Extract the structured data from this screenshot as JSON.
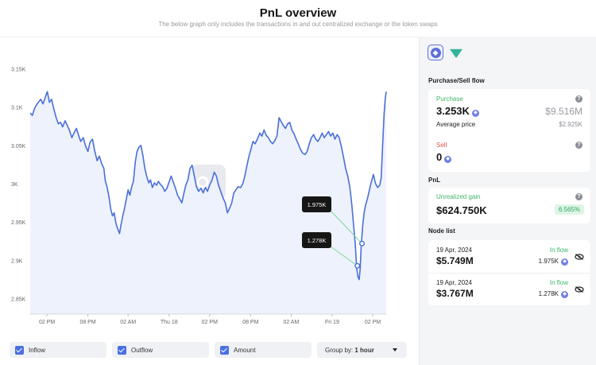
{
  "header": {
    "title": "PnL overview",
    "subtitle": "The below graph only includes the transactions in and out centralized exchange or the token swaps"
  },
  "chart_data": {
    "type": "line",
    "y_ticks": [
      "3.15K",
      "3.1K",
      "3.05K",
      "3K",
      "2.95K",
      "2.9K",
      "2.85K"
    ],
    "y_tick_values": [
      3150,
      3100,
      3050,
      3000,
      2950,
      2900,
      2850
    ],
    "ylim": [
      2830,
      3170
    ],
    "x_ticks": [
      "02 PM",
      "08 PM",
      "02 AM",
      "Thu 18",
      "02 PM",
      "08 PM",
      "02 AM",
      "Fri 19",
      "02 PM"
    ],
    "xlim": [
      0,
      100
    ],
    "x_tick_values": [
      4.7,
      16.2,
      27.5,
      39.0,
      50.4,
      61.9,
      73.3,
      84.8,
      96.2
    ],
    "values": [
      [
        0,
        3092
      ],
      [
        0.6,
        3089
      ],
      [
        1.2,
        3098
      ],
      [
        1.8,
        3103
      ],
      [
        2.4,
        3107
      ],
      [
        3.0,
        3110
      ],
      [
        3.6,
        3104
      ],
      [
        4.2,
        3112
      ],
      [
        4.8,
        3120
      ],
      [
        5.4,
        3106
      ],
      [
        6.0,
        3110
      ],
      [
        6.6,
        3098
      ],
      [
        7.3,
        3086
      ],
      [
        7.9,
        3078
      ],
      [
        8.5,
        3080
      ],
      [
        9.1,
        3074
      ],
      [
        9.8,
        3082
      ],
      [
        10.4,
        3076
      ],
      [
        11.0,
        3070
      ],
      [
        11.7,
        3060
      ],
      [
        12.3,
        3066
      ],
      [
        13.0,
        3072
      ],
      [
        13.6,
        3063
      ],
      [
        14.2,
        3055
      ],
      [
        14.9,
        3060
      ],
      [
        15.5,
        3050
      ],
      [
        16.2,
        3042
      ],
      [
        16.8,
        3054
      ],
      [
        17.5,
        3058
      ],
      [
        18.1,
        3043
      ],
      [
        18.8,
        3030
      ],
      [
        19.4,
        3036
      ],
      [
        20.1,
        3026
      ],
      [
        20.7,
        3020
      ],
      [
        21.1,
        3004
      ],
      [
        21.6,
        2995
      ],
      [
        22.1,
        2984
      ],
      [
        22.6,
        2968
      ],
      [
        23.1,
        2958
      ],
      [
        23.6,
        2962
      ],
      [
        24.1,
        2948
      ],
      [
        24.6,
        2941
      ],
      [
        25.1,
        2935
      ],
      [
        25.5,
        2946
      ],
      [
        26.0,
        2958
      ],
      [
        26.5,
        2968
      ],
      [
        27.0,
        2980
      ],
      [
        27.5,
        2992
      ],
      [
        28.0,
        2985
      ],
      [
        28.5,
        2996
      ],
      [
        29.0,
        3003
      ],
      [
        29.5,
        3028
      ],
      [
        30.0,
        3042
      ],
      [
        30.6,
        3048
      ],
      [
        31.1,
        3050
      ],
      [
        31.6,
        3038
      ],
      [
        32.2,
        3020
      ],
      [
        32.7,
        3010
      ],
      [
        33.3,
        3001
      ],
      [
        33.8,
        3005
      ],
      [
        34.3,
        2995
      ],
      [
        34.9,
        3001
      ],
      [
        35.5,
        2998
      ],
      [
        36.0,
        3003
      ],
      [
        36.6,
        2999
      ],
      [
        37.2,
        2996
      ],
      [
        37.8,
        2990
      ],
      [
        38.4,
        2994
      ],
      [
        39.0,
        3002
      ],
      [
        39.6,
        3010
      ],
      [
        40.2,
        3002
      ],
      [
        40.8,
        2994
      ],
      [
        41.4,
        2985
      ],
      [
        42.0,
        2980
      ],
      [
        42.6,
        2975
      ],
      [
        43.2,
        2988
      ],
      [
        43.7,
        2998
      ],
      [
        44.3,
        3005
      ],
      [
        44.9,
        3020
      ],
      [
        45.5,
        3024
      ],
      [
        46.1,
        3010
      ],
      [
        46.7,
        2996
      ],
      [
        47.3,
        2990
      ],
      [
        48.0,
        2994
      ],
      [
        48.6,
        2988
      ],
      [
        49.2,
        2995
      ],
      [
        49.8,
        2990
      ],
      [
        50.4,
        2998
      ],
      [
        51.1,
        3005
      ],
      [
        51.7,
        3015
      ],
      [
        52.3,
        3010
      ],
      [
        52.9,
        2998
      ],
      [
        53.5,
        2990
      ],
      [
        54.2,
        2981
      ],
      [
        54.8,
        2975
      ],
      [
        55.4,
        2962
      ],
      [
        56.0,
        2968
      ],
      [
        56.6,
        2975
      ],
      [
        57.2,
        2988
      ],
      [
        57.8,
        2992
      ],
      [
        58.4,
        2996
      ],
      [
        59.1,
        2995
      ],
      [
        59.7,
        3000
      ],
      [
        60.3,
        3010
      ],
      [
        60.8,
        3022
      ],
      [
        61.4,
        3035
      ],
      [
        62.0,
        3045
      ],
      [
        62.6,
        3055
      ],
      [
        63.2,
        3052
      ],
      [
        63.8,
        3058
      ],
      [
        64.5,
        3066
      ],
      [
        65.1,
        3062
      ],
      [
        65.7,
        3070
      ],
      [
        66.3,
        3063
      ],
      [
        66.9,
        3060
      ],
      [
        67.5,
        3055
      ],
      [
        68.1,
        3052
      ],
      [
        68.7,
        3056
      ],
      [
        69.3,
        3062
      ],
      [
        69.9,
        3086
      ],
      [
        70.5,
        3081
      ],
      [
        71.1,
        3076
      ],
      [
        71.7,
        3072
      ],
      [
        72.3,
        3078
      ],
      [
        72.9,
        3080
      ],
      [
        73.5,
        3070
      ],
      [
        74.1,
        3065
      ],
      [
        74.7,
        3058
      ],
      [
        75.3,
        3052
      ],
      [
        75.9,
        3045
      ],
      [
        76.5,
        3040
      ],
      [
        77.2,
        3038
      ],
      [
        77.8,
        3042
      ],
      [
        78.4,
        3052
      ],
      [
        79.0,
        3060
      ],
      [
        79.6,
        3064
      ],
      [
        80.2,
        3058
      ],
      [
        80.8,
        3055
      ],
      [
        81.4,
        3060
      ],
      [
        82.0,
        3066
      ],
      [
        82.6,
        3060
      ],
      [
        83.2,
        3064
      ],
      [
        83.8,
        3068
      ],
      [
        84.4,
        3062
      ],
      [
        85.0,
        3066
      ],
      [
        85.6,
        3058
      ],
      [
        86.2,
        3064
      ],
      [
        86.8,
        3060
      ],
      [
        87.4,
        3048
      ],
      [
        88.0,
        3035
      ],
      [
        88.6,
        3020
      ],
      [
        89.2,
        3010
      ],
      [
        89.8,
        2995
      ],
      [
        90.3,
        2975
      ],
      [
        90.8,
        2948
      ],
      [
        91.3,
        2922
      ],
      [
        91.7,
        2890
      ],
      [
        92.1,
        2878
      ],
      [
        92.4,
        2875
      ],
      [
        92.7,
        2890
      ],
      [
        93.0,
        2920
      ],
      [
        93.4,
        2945
      ],
      [
        93.8,
        2962
      ],
      [
        94.2,
        2972
      ],
      [
        94.7,
        2980
      ],
      [
        95.2,
        2990
      ],
      [
        95.8,
        3002
      ],
      [
        96.4,
        3012
      ],
      [
        97.0,
        3000
      ],
      [
        97.6,
        2995
      ],
      [
        98.2,
        2998
      ],
      [
        98.6,
        3008
      ],
      [
        99.0,
        3050
      ],
      [
        99.4,
        3090
      ],
      [
        99.7,
        3110
      ],
      [
        100,
        3120
      ]
    ],
    "markers": [
      {
        "label": "1.975K",
        "x": 93.2,
        "y": 2922
      },
      {
        "label": "1.278K",
        "x": 91.9,
        "y": 2893
      }
    ],
    "watermark": "SPOTONCHAIN",
    "colors": {
      "line": "#4a6fd9",
      "fill": "#eef2fc",
      "marker_line": "#7ed89a"
    }
  },
  "controls": {
    "inflow_label": "Inflow",
    "outflow_label": "Outflow",
    "amount_label": "Amount",
    "group_by_prefix": "Group by:",
    "group_by_value": "1 hour"
  },
  "sidebar": {
    "tokens": [
      "eth-icon",
      "ton-icon"
    ],
    "flow_title": "Purchase/Sell flow",
    "purchase_label": "Purchase",
    "purchase_amount": "3.253K",
    "purchase_usd": "$9.516M",
    "avg_price_label": "Average price",
    "avg_price_value": "$2.925K",
    "sell_label": "Sell",
    "sell_amount": "0",
    "pnl_title": "PnL",
    "unrealized_label": "Unrealized gain",
    "unrealized_value": "$624.750K",
    "unrealized_pct": "6.565%",
    "node_title": "Node list",
    "nodes": [
      {
        "date": "19 Apr, 2024",
        "direction": "In flow",
        "usd": "$5.749M",
        "amount": "1.975K"
      },
      {
        "date": "19 Apr, 2024",
        "direction": "In flow",
        "usd": "$3.767M",
        "amount": "1.278K"
      }
    ]
  }
}
